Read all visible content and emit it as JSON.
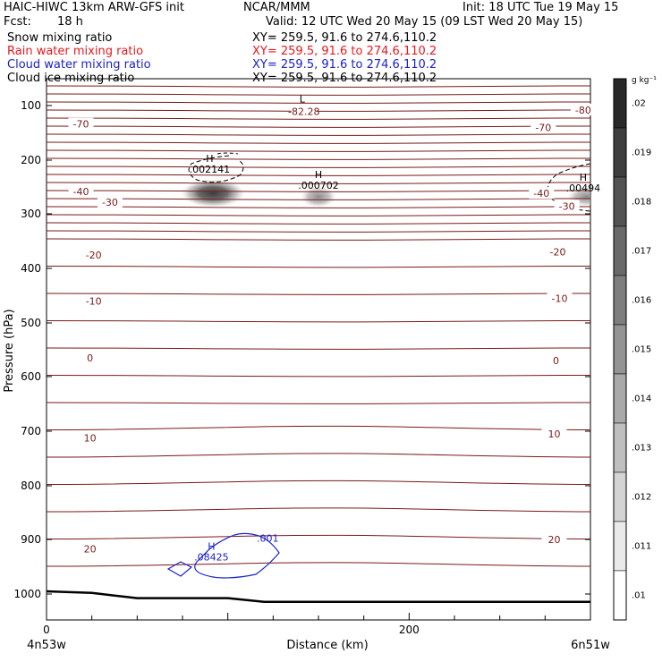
{
  "header": {
    "model": "HAIC-HIWC 13km ARW-GFS init",
    "center": "NCAR/MMM",
    "init": "Init: 18 UTC Tue 19 May 15",
    "fcst_label": "Fcst:",
    "fcst_value": "18 h",
    "valid": "Valid: 12 UTC Wed 20 May 15 (09 LST Wed 20 May 15)"
  },
  "fields": [
    {
      "name": "Snow mixing ratio",
      "xy": "XY=  259.5, 91.6 to 274.6,110.2",
      "color": "#000000"
    },
    {
      "name": "Rain water mixing ratio",
      "xy": "XY=  259.5, 91.6 to 274.6,110.2",
      "color": "#e8181e"
    },
    {
      "name": "Cloud water mixing ratio",
      "xy": "XY=  259.5, 91.6 to 274.6,110.2",
      "color": "#1c22c8"
    },
    {
      "name": "Cloud ice mixing ratio",
      "xy": "XY=  259.5, 91.6 to 274.6,110.2",
      "color": "#000000"
    }
  ],
  "colorbar": {
    "unit": "g kg⁻¹",
    "labels": [
      ".02",
      ".019",
      ".018",
      ".017",
      ".016",
      ".015",
      ".014",
      ".013",
      ".012",
      ".011",
      ".01"
    ]
  },
  "chart_data": {
    "type": "contour",
    "xlabel": "Distance (km)",
    "ylabel": "Pressure (hPa)",
    "xlim": [
      0,
      300
    ],
    "ylim": [
      1050,
      70
    ],
    "y_log": true,
    "xticks": [
      0,
      200
    ],
    "yticks": [
      100,
      200,
      300,
      400,
      500,
      600,
      700,
      800,
      900,
      1000
    ],
    "left_endpoint": "4n53w",
    "right_endpoint": "6n51w",
    "temperature_labels": [
      {
        "text": "-82.28",
        "x": 142,
        "p": 111
      },
      {
        "text": "-80",
        "x": 296,
        "p": 108
      },
      {
        "text": "-70",
        "x": 19,
        "p": 134
      },
      {
        "text": "-70",
        "x": 274,
        "p": 140
      },
      {
        "text": "-40",
        "x": 19,
        "p": 258
      },
      {
        "text": "-40",
        "x": 273,
        "p": 262
      },
      {
        "text": "-30",
        "x": 35,
        "p": 278
      },
      {
        "text": "-30",
        "x": 287,
        "p": 286
      },
      {
        "text": "-20",
        "x": 26,
        "p": 375
      },
      {
        "text": "-20",
        "x": 282,
        "p": 370
      },
      {
        "text": "-10",
        "x": 26,
        "p": 460
      },
      {
        "text": "-10",
        "x": 283,
        "p": 455
      },
      {
        "text": "0",
        "x": 24,
        "p": 565
      },
      {
        "text": "0",
        "x": 281,
        "p": 570
      },
      {
        "text": "10",
        "x": 24,
        "p": 712
      },
      {
        "text": "10",
        "x": 280,
        "p": 705
      },
      {
        "text": "20",
        "x": 24,
        "p": 917
      },
      {
        "text": "20",
        "x": 280,
        "p": 900
      }
    ],
    "max_markers": [
      {
        "symbol": "L",
        "value": "",
        "x": 141,
        "p": 101
      },
      {
        "symbol": "H",
        "value": ".002141",
        "x": 90,
        "p": 210
      },
      {
        "symbol": "H",
        "value": ".000702",
        "x": 150,
        "p": 240
      },
      {
        "symbol": "H",
        "value": ".00494",
        "x": 296,
        "p": 245
      },
      {
        "symbol": "H",
        "value": ".08425",
        "x": 91,
        "p": 925
      },
      {
        "symbol": "",
        "value": ".001",
        "x": 122,
        "p": 891
      }
    ],
    "snow_blobs": [
      {
        "x": 92,
        "p": 262,
        "max": 0.02
      },
      {
        "x": 151,
        "p": 262,
        "max": 0.015
      },
      {
        "x": 296,
        "p": 262,
        "max": 0.012
      }
    ],
    "cloud_ice_contour": 5e-05,
    "cloud_water_contour": 0.001,
    "terrain_p": [
      {
        "x": 0,
        "p": 995
      },
      {
        "x": 25,
        "p": 998
      },
      {
        "x": 50,
        "p": 1008
      },
      {
        "x": 60,
        "p": 1008
      },
      {
        "x": 100,
        "p": 1008
      },
      {
        "x": 120,
        "p": 1015
      },
      {
        "x": 200,
        "p": 1015
      },
      {
        "x": 300,
        "p": 1015
      }
    ]
  }
}
